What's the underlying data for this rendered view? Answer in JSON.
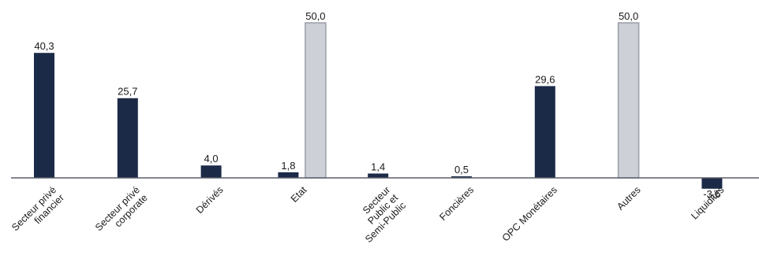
{
  "chart_data": {
    "type": "bar",
    "categories": [
      [
        "Secteur privé",
        "financier"
      ],
      [
        "Secteur privé",
        "corporate"
      ],
      [
        "Dérivés"
      ],
      [
        "Etat"
      ],
      [
        "Secteur",
        "Public et",
        "Semi-Public"
      ],
      [
        "Foncières"
      ],
      [
        "OPC Monétaires"
      ],
      [
        "Autres"
      ],
      [
        "Liquidités"
      ]
    ],
    "series": [
      {
        "values": [
          40.3,
          25.7,
          4.0,
          1.8,
          1.4,
          0.5,
          29.6,
          null,
          -3.5
        ],
        "color": "#1b2a47"
      },
      {
        "values": [
          null,
          null,
          null,
          50.0,
          null,
          null,
          null,
          50.0,
          null
        ],
        "color": "#cdd0d6",
        "stroke": "#9a9ea6"
      }
    ],
    "value_labels": [
      [
        "40,3",
        "25,7",
        "4,0",
        "1,8",
        "1,4",
        "0,5",
        "29,6",
        null,
        "-3,5"
      ],
      [
        null,
        null,
        null,
        "50,0",
        null,
        null,
        null,
        "50,0",
        null
      ]
    ],
    "ylim": [
      -3.5,
      50
    ],
    "grid": false,
    "legend": "none",
    "baseline_color": "#5a5f6a"
  }
}
